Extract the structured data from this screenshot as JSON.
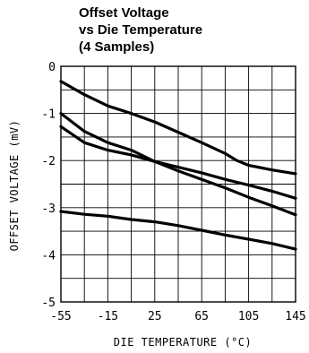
{
  "chart_data": {
    "type": "line",
    "title": [
      "Offset Voltage",
      "vs Die Temperature",
      "(4 Samples)"
    ],
    "xlabel": "DIE TEMPERATURE (°C)",
    "ylabel": "OFFSET VOLTAGE (mV)",
    "xlim": [
      -55,
      145
    ],
    "ylim": [
      -5,
      0
    ],
    "x_ticks": [
      -55,
      -15,
      25,
      65,
      105,
      145
    ],
    "x_tick_labels": [
      "-55",
      "-15",
      "25",
      "65",
      "105",
      "145"
    ],
    "y_ticks": [
      0,
      -1,
      -2,
      -3,
      -4,
      -5
    ],
    "y_tick_labels": [
      "0",
      "-1",
      "-2",
      "-3",
      "-4",
      "-5"
    ],
    "grid": true,
    "line_color": "#000000",
    "series": [
      {
        "x": [
          -55,
          -35,
          -15,
          5,
          25,
          45,
          65,
          85,
          95,
          105,
          125,
          145
        ],
        "values": [
          -0.32,
          -0.6,
          -0.84,
          -1.0,
          -1.18,
          -1.4,
          -1.62,
          -1.85,
          -2.0,
          -2.1,
          -2.2,
          -2.28
        ]
      },
      {
        "x": [
          -55,
          -35,
          -15,
          5,
          25,
          45,
          65,
          85,
          105,
          125,
          145
        ],
        "values": [
          -1.0,
          -1.38,
          -1.62,
          -1.78,
          -2.02,
          -2.22,
          -2.4,
          -2.58,
          -2.78,
          -2.96,
          -3.15
        ]
      },
      {
        "x": [
          -55,
          -35,
          -15,
          5,
          25,
          45,
          65,
          85,
          105,
          125,
          145
        ],
        "values": [
          -1.28,
          -1.62,
          -1.78,
          -1.88,
          -2.02,
          -2.14,
          -2.26,
          -2.4,
          -2.52,
          -2.65,
          -2.8
        ]
      },
      {
        "x": [
          -55,
          -35,
          -15,
          5,
          25,
          45,
          65,
          85,
          105,
          125,
          145
        ],
        "values": [
          -3.08,
          -3.14,
          -3.18,
          -3.25,
          -3.3,
          -3.38,
          -3.48,
          -3.58,
          -3.67,
          -3.76,
          -3.88
        ]
      }
    ]
  }
}
